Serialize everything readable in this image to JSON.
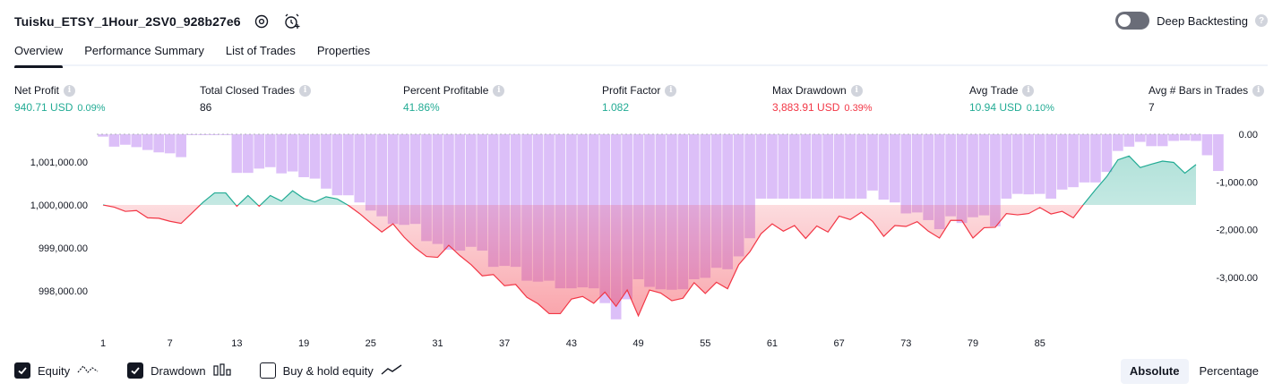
{
  "header": {
    "title": "Tuisku_ETSY_1Hour_2SV0_928b27e6",
    "icons": [
      "settings-icon",
      "add-alert-icon"
    ]
  },
  "deep_backtesting": {
    "label": "Deep Backtesting",
    "enabled": false,
    "help": "?"
  },
  "tabs": [
    {
      "label": "Overview",
      "active": true
    },
    {
      "label": "Performance Summary",
      "active": false
    },
    {
      "label": "List of Trades",
      "active": false
    },
    {
      "label": "Properties",
      "active": false
    }
  ],
  "stats": [
    {
      "label": "Net Profit",
      "value": "940.71 USD",
      "pct": "0.09%",
      "tone": "pos"
    },
    {
      "label": "Total Closed Trades",
      "value": "86",
      "pct": "",
      "tone": "neutral"
    },
    {
      "label": "Percent Profitable",
      "value": "41.86%",
      "pct": "",
      "tone": "pos"
    },
    {
      "label": "Profit Factor",
      "value": "1.082",
      "pct": "",
      "tone": "pos"
    },
    {
      "label": "Max Drawdown",
      "value": "3,883.91 USD",
      "pct": "0.39%",
      "tone": "neg"
    },
    {
      "label": "Avg Trade",
      "value": "10.94 USD",
      "pct": "0.10%",
      "tone": "pos"
    },
    {
      "label": "Avg # Bars in Trades",
      "value": "7",
      "pct": "",
      "tone": "neutral"
    }
  ],
  "stat_info_glyph": "i",
  "chart_data": {
    "type": "line",
    "baseline": 1000000,
    "x_ticks": [
      1,
      7,
      13,
      19,
      25,
      31,
      37,
      43,
      49,
      55,
      61,
      67,
      73,
      79,
      85
    ],
    "left_axis": {
      "ticks": [
        1001000,
        1000000,
        999000,
        998000
      ],
      "labels": [
        "1,001,000.00",
        "1,000,000.00",
        "999,000.00",
        "998,000.00"
      ]
    },
    "right_axis": {
      "ticks": [
        0,
        -1000,
        -2000,
        -3000
      ],
      "labels": [
        "0.00",
        "-1,000.00",
        "-2,000.00",
        "-3,000.00"
      ]
    },
    "equity": [
      1000000,
      999950,
      999850,
      999870,
      999700,
      999690,
      999620,
      999570,
      999820,
      1000070,
      1000280,
      1000280,
      999970,
      1000220,
      999970,
      1000220,
      1000090,
      1000330,
      1000150,
      1000070,
      1000190,
      1000140,
      999990,
      999800,
      999580,
      999370,
      999560,
      999250,
      999000,
      998800,
      998780,
      999060,
      998820,
      998610,
      998350,
      998380,
      998120,
      998150,
      997850,
      997700,
      997470,
      997470,
      997810,
      997870,
      997710,
      997970,
      997640,
      998020,
      997420,
      998020,
      997950,
      997770,
      997830,
      998190,
      997940,
      998200,
      998050,
      998610,
      998910,
      999330,
      999560,
      999390,
      999520,
      999220,
      999510,
      999370,
      999740,
      999660,
      999830,
      999620,
      999270,
      999520,
      999500,
      999610,
      999390,
      999230,
      999640,
      999640,
      999230,
      999470,
      999480,
      999800,
      999770,
      999800,
      999940,
      999790,
      999850,
      999700,
      1000040,
      1000360,
      1000660,
      1001050,
      1001140,
      1000870,
      1000950,
      1001020,
      1000990,
      1000740,
      1000940
    ],
    "drawdown": [
      -50,
      -260,
      -220,
      -270,
      -330,
      -380,
      -400,
      -480,
      -10,
      -10,
      -10,
      -10,
      -810,
      -810,
      -720,
      -690,
      -820,
      -780,
      -900,
      -930,
      -1140,
      -1280,
      -1280,
      -1430,
      -1600,
      -1720,
      -1880,
      -1900,
      -1880,
      -2240,
      -2300,
      -2420,
      -2440,
      -2360,
      -2440,
      -2780,
      -2760,
      -2780,
      -3070,
      -3090,
      -3070,
      -3230,
      -3230,
      -3210,
      -3230,
      -3540,
      -3880,
      -3460,
      -3040,
      -3200,
      -3250,
      -3260,
      -3250,
      -3040,
      -3010,
      -2800,
      -2830,
      -2560,
      -2180,
      -1350,
      -1350,
      -1350,
      -1350,
      -1350,
      -1350,
      -1350,
      -1350,
      -1350,
      -1350,
      -1180,
      -1370,
      -1430,
      -1660,
      -1640,
      -1800,
      -1990,
      -1720,
      -1860,
      -1740,
      -1700,
      -1930,
      -1350,
      -1250,
      -1260,
      -1250,
      -1350,
      -1160,
      -1110,
      -1010,
      -1010,
      -790,
      -350,
      -260,
      -160,
      -250,
      -250,
      -140,
      -130,
      -140,
      -440,
      -770
    ]
  },
  "legend": [
    {
      "label": "Equity",
      "checked": true,
      "icon": "equity-line-icon"
    },
    {
      "label": "Drawdown",
      "checked": true,
      "icon": "drawdown-bars-icon"
    },
    {
      "label": "Buy & hold equity",
      "checked": false,
      "icon": "buy-hold-line-icon"
    }
  ],
  "display_mode": {
    "options": [
      "Absolute",
      "Percentage"
    ],
    "selected": "Absolute"
  },
  "colors": {
    "equity_pos": "#22ab94",
    "equity_neg": "#f23645",
    "drawdown": "#d6b4f7",
    "text": "#131722"
  }
}
